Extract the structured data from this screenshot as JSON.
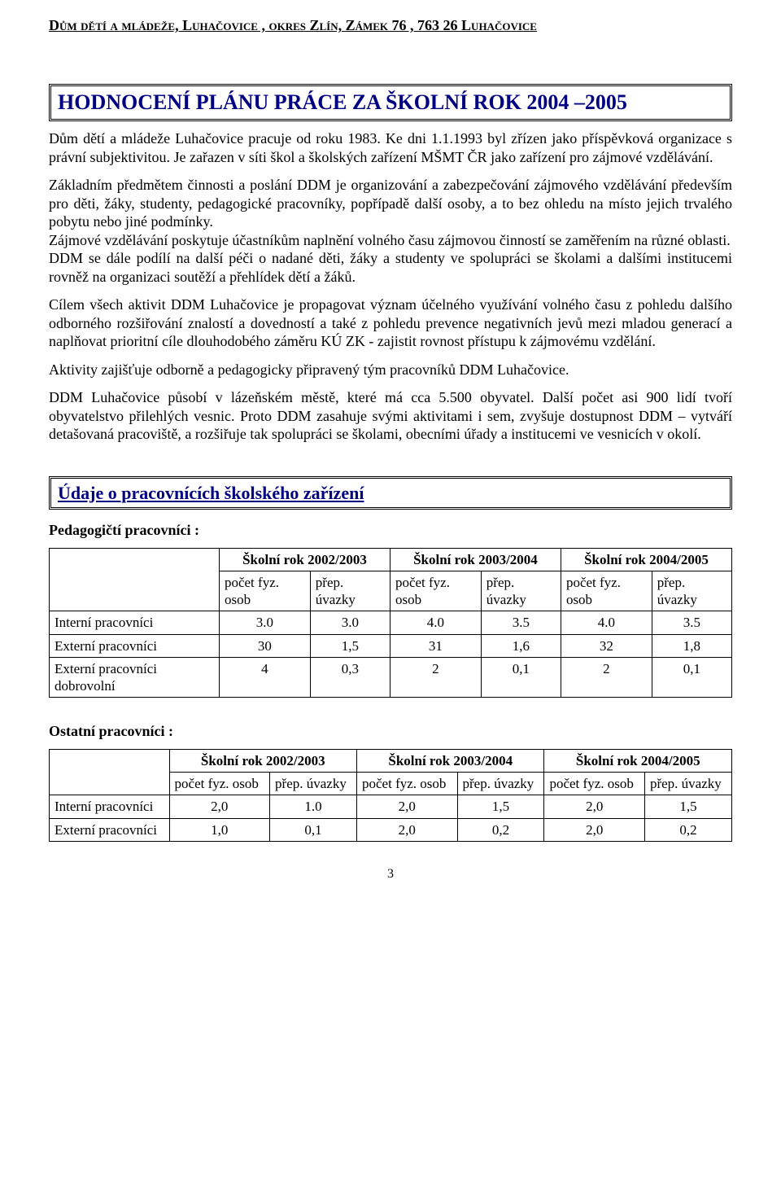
{
  "colors": {
    "heading": "#000080",
    "text": "#000000",
    "background": "#ffffff",
    "border": "#000000"
  },
  "fonts": {
    "family": "Times New Roman",
    "body_size_pt": 13,
    "h1_size_pt": 19,
    "h2_size_pt": 16
  },
  "letterhead": "Dům dětí a mládeže, Luhačovice , okres Zlín,  Zámek 76 ,  763 26  Luhačovice",
  "title": "HODNOCENÍ PLÁNU PRÁCE ZA ŠKOLNÍ ROK 2004 –2005",
  "para1": "Dům dětí a mládeže Luhačovice pracuje od roku 1983. Ke dni 1.1.1993 byl zřízen jako příspěvková organizace s právní subjektivitou.  Je zařazen v síti škol a školských zařízení MŠMT ČR jako zařízení pro zájmové vzdělávání.",
  "para2": "Základním předmětem činnosti a poslání DDM je organizování a zabezpečování  zájmového vzdělávání především pro děti, žáky, studenty, pedagogické pracovníky, popřípadě další osoby, a to bez ohledu na místo jejich trvalého pobytu nebo jiné podmínky.",
  "para3": "Zájmové vzdělávání poskytuje účastníkům naplnění volného času zájmovou činností se zaměřením na různé oblasti.",
  "para4": "DDM se dále podílí na další péči o nadané děti, žáky a studenty ve spolupráci se školami a dalšími institucemi rovněž na organizaci soutěží a přehlídek dětí a žáků.",
  "para5": "Cílem všech aktivit DDM Luhačovice je propagovat význam účelného využívání volného času z pohledu dalšího odborného rozšiřování znalostí a dovedností a také z pohledu prevence negativních jevů mezi mladou generací a naplňovat prioritní cíle dlouhodobého záměru KÚ ZK - zajistit rovnost přístupu k zájmovému vzdělání.",
  "para6": "Aktivity zajišťuje odborně a pedagogicky připravený tým pracovníků DDM Luhačovice.",
  "para7": "DDM Luhačovice působí v lázeňském městě, které má cca 5.500 obyvatel. Další počet asi 900 lidí tvoří obyvatelstvo přilehlých vesnic. Proto DDM zasahuje svými aktivitami i sem, zvyšuje dostupnost DDM – vytváří detašovaná pracoviště, a rozšiřuje tak spolupráci se školami, obecními úřady a institucemi ve vesnicích v okolí.",
  "section2_title": "Údaje o pracovnících školského zařízení",
  "ped_heading": "Pedagogičtí pracovníci :",
  "ost_heading": "Ostatní pracovníci :",
  "tbl": {
    "years": [
      "Školní rok 2002/2003",
      "Školní rok 2003/2004",
      "Školní rok 2004/2005"
    ],
    "sub_a": "počet fyz. osob",
    "sub_b": "přep. úvazky",
    "sub_b2": "přep. úvazky"
  },
  "ped_rows": [
    {
      "label": "Interní pracovníci",
      "c": [
        "3.0",
        "3.0",
        "4.0",
        "3.5",
        "4.0",
        "3.5"
      ]
    },
    {
      "label": "Externí pracovníci",
      "c": [
        "30",
        "1,5",
        "31",
        "1,6",
        "32",
        "1,8"
      ]
    },
    {
      "label": "Externí pracovníci dobrovolní",
      "c": [
        "4",
        "0,3",
        "2",
        "0,1",
        "2",
        "0,1"
      ]
    }
  ],
  "ost_rows": [
    {
      "label": "Interní pracovníci",
      "c": [
        "2,0",
        "1.0",
        "2,0",
        "1,5",
        "2,0",
        "1,5"
      ]
    },
    {
      "label": "Externí pracovníci",
      "c": [
        "1,0",
        "0,1",
        "2,0",
        "0,2",
        "2,0",
        "0,2"
      ]
    }
  ],
  "page_number": "3"
}
